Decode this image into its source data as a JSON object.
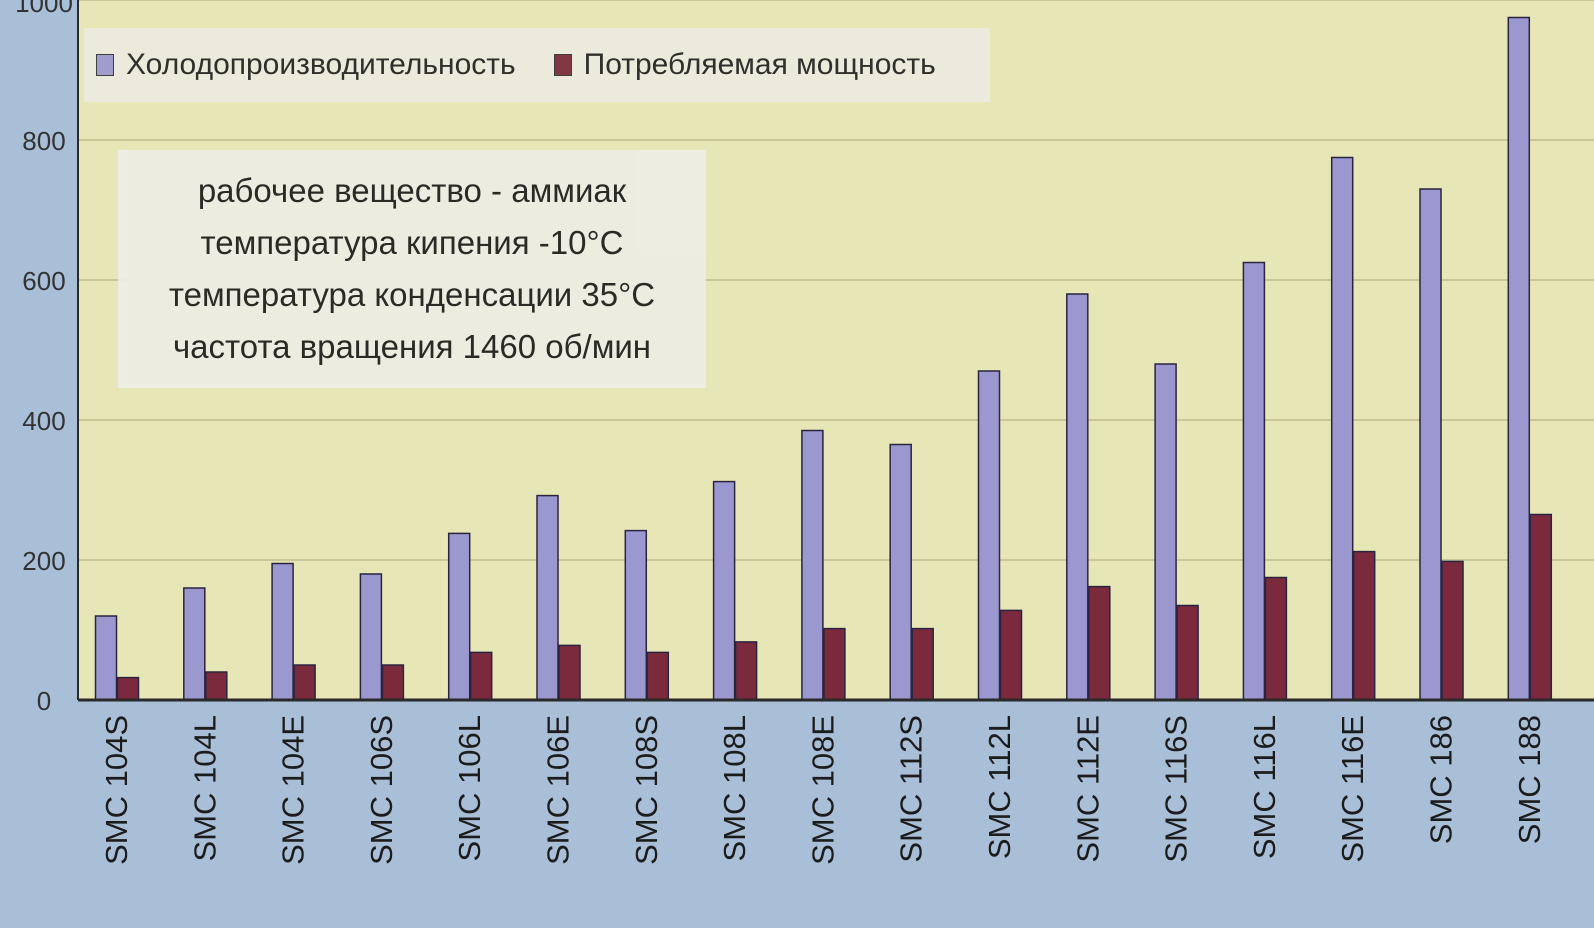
{
  "chart_data": {
    "type": "bar",
    "title": "",
    "xlabel": "",
    "ylabel": "",
    "ylim": [
      0,
      1000
    ],
    "y_ticks": [
      0,
      200,
      400,
      600,
      800,
      1000
    ],
    "grid": true,
    "legend_position": "top-left",
    "categories": [
      "SMC 104S",
      "SMC 104L",
      "SMC 104E",
      "SMC 106S",
      "SMC 106L",
      "SMC 106E",
      "SMC 108S",
      "SMC 108L",
      "SMC 108E",
      "SMC 112S",
      "SMC 112L",
      "SMC 112E",
      "SMC 116S",
      "SMC 116L",
      "SMC 116E",
      "SMC 186",
      "SMC 188"
    ],
    "series": [
      {
        "name": "Холодопроизводительность",
        "color": "#9b98cf",
        "values": [
          120,
          160,
          195,
          180,
          238,
          292,
          242,
          312,
          385,
          365,
          470,
          580,
          480,
          625,
          775,
          730,
          975
        ]
      },
      {
        "name": "Потребляемая мощность",
        "color": "#7a2a3c",
        "values": [
          32,
          40,
          50,
          50,
          68,
          78,
          68,
          83,
          102,
          102,
          128,
          162,
          135,
          175,
          212,
          198,
          265
        ]
      }
    ],
    "annotations": [
      "рабочее вещество - аммиак",
      "температура кипения  -10°С",
      "температура конденсации  35°С",
      "частота вращения  1460 об/мин"
    ]
  },
  "colors": {
    "plot_background": "#e7e6b7",
    "outer_background": "#a9bfd8",
    "gridline": "#c9c79a",
    "axis": "#2a2a2a"
  }
}
